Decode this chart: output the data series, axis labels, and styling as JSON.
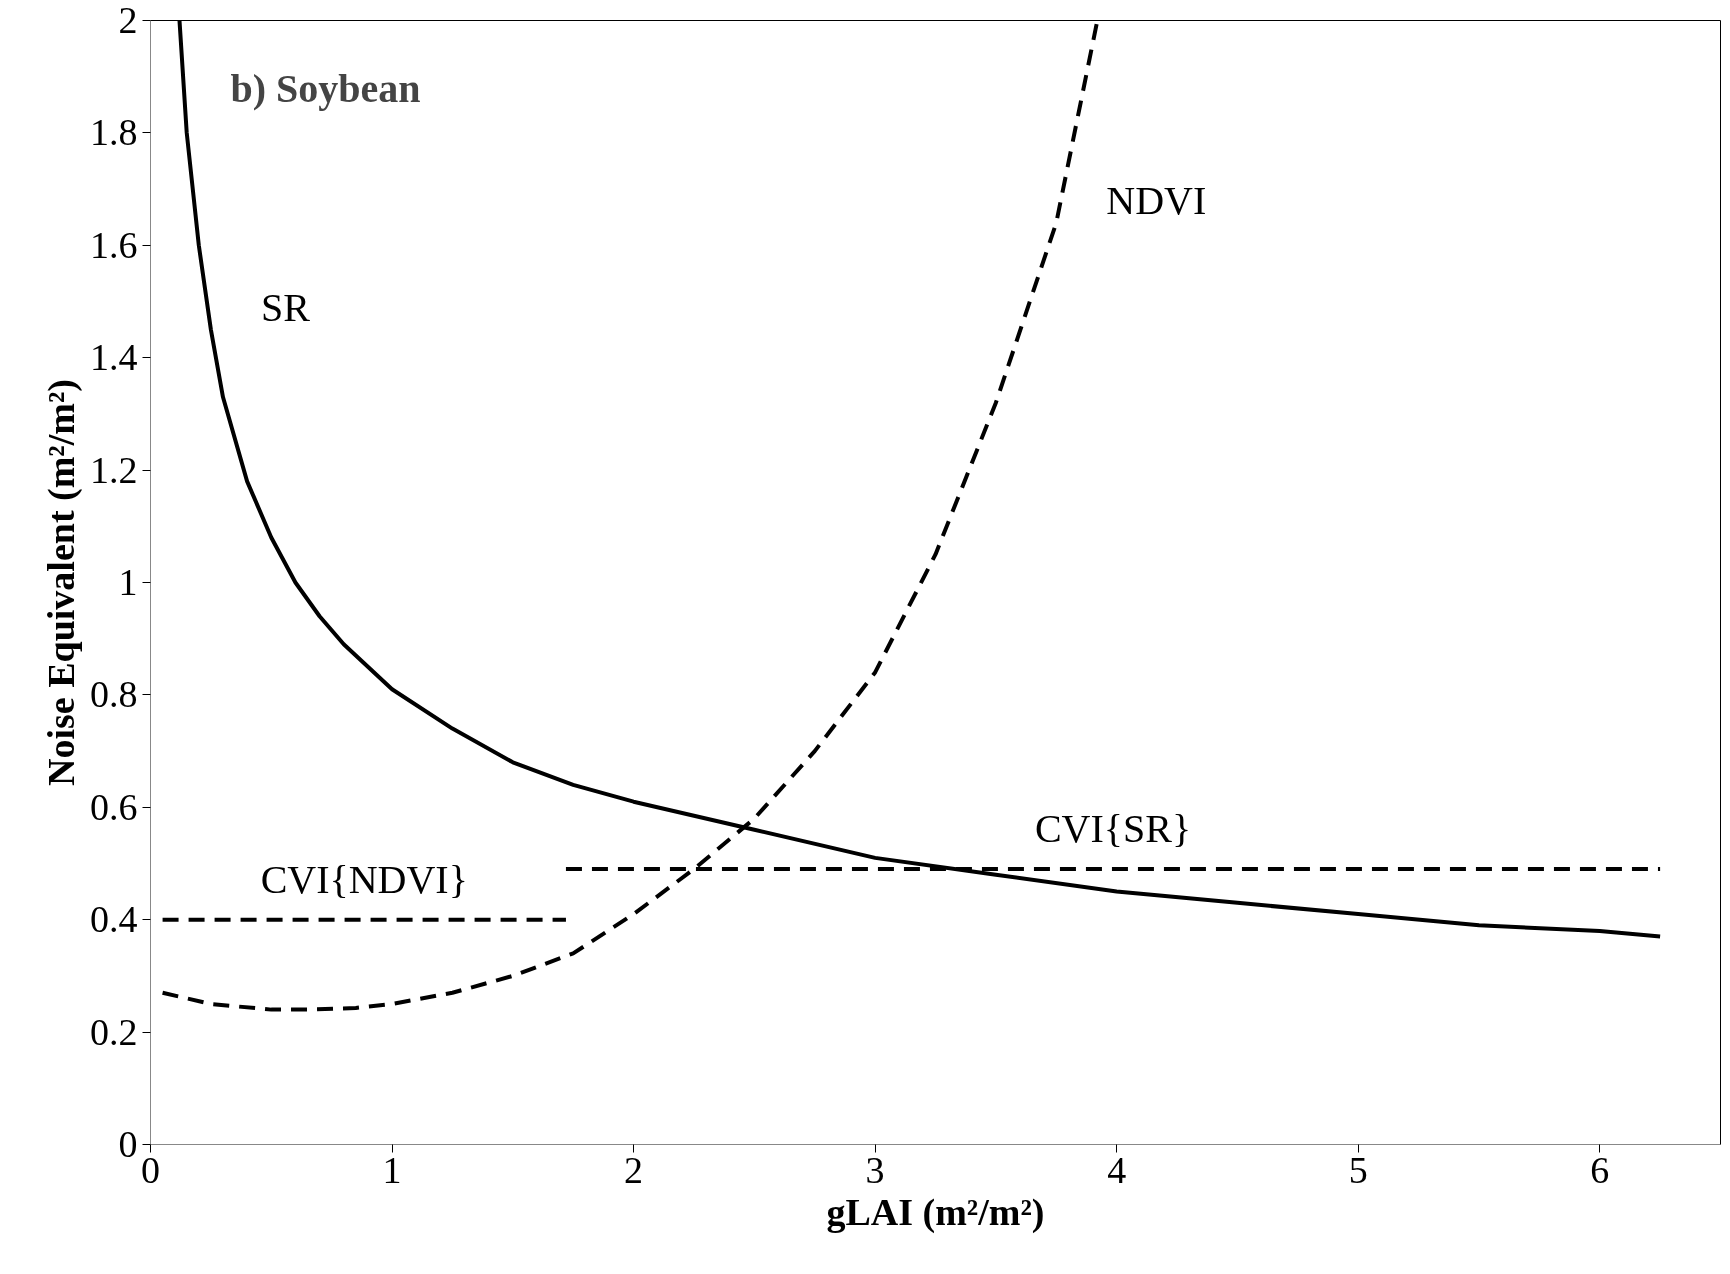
{
  "chart_data": {
    "type": "line",
    "title": "b) Soybean",
    "xlabel": "gLAI (m²/m²)",
    "ylabel": "Noise Equivalent (m²/m²)",
    "xlim": [
      0,
      6.5
    ],
    "ylim": [
      0,
      2
    ],
    "xticks": [
      0,
      1,
      2,
      3,
      4,
      5,
      6
    ],
    "yticks": [
      0,
      0.2,
      0.4,
      0.6,
      0.8,
      1,
      1.2,
      1.4,
      1.6,
      1.8,
      2
    ],
    "grid": false,
    "marker": "none",
    "series": [
      {
        "name": "SR",
        "color": "#000000",
        "line_style": "solid",
        "x": [
          0.12,
          0.15,
          0.2,
          0.25,
          0.3,
          0.4,
          0.5,
          0.6,
          0.7,
          0.8,
          1,
          1.25,
          1.5,
          1.75,
          2,
          2.5,
          3,
          3.5,
          4,
          4.5,
          5,
          5.5,
          6,
          6.25
        ],
        "values": [
          2.0,
          1.8,
          1.6,
          1.45,
          1.33,
          1.18,
          1.08,
          1.0,
          0.94,
          0.89,
          0.81,
          0.74,
          0.68,
          0.64,
          0.61,
          0.56,
          0.51,
          0.48,
          0.45,
          0.43,
          0.41,
          0.39,
          0.38,
          0.37
        ]
      },
      {
        "name": "NDVI",
        "color": "#000000",
        "line_style": "dashed",
        "x": [
          0.05,
          0.25,
          0.5,
          0.65,
          0.85,
          1,
          1.25,
          1.5,
          1.75,
          2,
          2.25,
          2.5,
          2.75,
          3,
          3.25,
          3.5,
          3.75,
          3.92
        ],
        "values": [
          0.27,
          0.25,
          0.24,
          0.24,
          0.243,
          0.25,
          0.27,
          0.3,
          0.34,
          0.41,
          0.49,
          0.58,
          0.7,
          0.84,
          1.05,
          1.32,
          1.64,
          2.0
        ]
      },
      {
        "name": "CVI{NDVI}",
        "color": "#000000",
        "line_style": "dashed",
        "x": [
          0.05,
          1.72
        ],
        "values": [
          0.4,
          0.4
        ]
      },
      {
        "name": "CVI{SR}",
        "color": "#000000",
        "line_style": "dashed",
        "x": [
          1.72,
          6.25
        ],
        "values": [
          0.49,
          0.49
        ]
      }
    ]
  }
}
